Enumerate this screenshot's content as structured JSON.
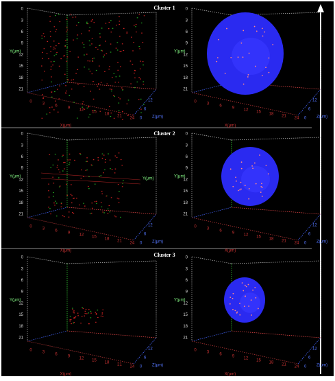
{
  "figure": {
    "clusters": [
      {
        "title": "Cluster 1"
      },
      {
        "title": "Cluster 2"
      },
      {
        "title": "Cluster 3"
      }
    ],
    "axes": {
      "y_label": "Y(μm)",
      "y_ticks": [
        0,
        3,
        6,
        9,
        12,
        15,
        18,
        21
      ],
      "x_label": "X(μm)",
      "x_ticks": [
        0,
        3,
        6,
        9,
        12,
        15,
        18,
        21,
        24
      ],
      "z_label": "Z(μm)",
      "z_ticks": [
        0,
        6,
        12
      ]
    }
  }
}
